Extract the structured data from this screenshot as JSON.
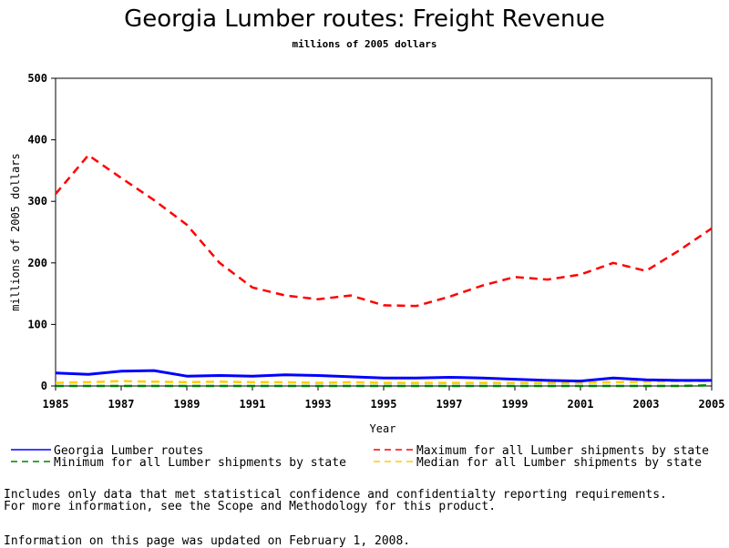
{
  "chart_data": {
    "type": "line",
    "title": "Georgia Lumber routes: Freight Revenue",
    "subtitle": "millions of 2005 dollars",
    "xlabel": "Year",
    "ylabel": "millions of 2005 dollars",
    "xlim": [
      1985,
      2005
    ],
    "ylim": [
      0,
      500
    ],
    "x_ticks": [
      "1985",
      "1987",
      "1989",
      "1991",
      "1993",
      "1995",
      "1997",
      "1999",
      "2001",
      "2003",
      "2005"
    ],
    "y_ticks": [
      "0",
      "100",
      "200",
      "300",
      "400",
      "500"
    ],
    "x": [
      1985,
      1986,
      1987,
      1988,
      1989,
      1990,
      1991,
      1992,
      1993,
      1994,
      1995,
      1996,
      1997,
      1998,
      1999,
      2000,
      2001,
      2002,
      2003,
      2004,
      2005
    ],
    "series": [
      {
        "name": "Georgia Lumber routes",
        "color": "#0000ff",
        "dash": "solid",
        "values": [
          21,
          19,
          24,
          25,
          16,
          17,
          16,
          18,
          17,
          15,
          13,
          13,
          14,
          13,
          11,
          9,
          8,
          13,
          10,
          9,
          9
        ]
      },
      {
        "name": "Maximum for all Lumber shipments by state",
        "color": "#ff0000",
        "dash": "dashed",
        "values": [
          312,
          375,
          338,
          302,
          262,
          200,
          160,
          147,
          141,
          147,
          131,
          130,
          145,
          163,
          177,
          173,
          181,
          200,
          187,
          220,
          256
        ]
      },
      {
        "name": "Minimum for all Lumber shipments by state",
        "color": "#008000",
        "dash": "dashed",
        "values": [
          0,
          0,
          0,
          0,
          0,
          0,
          0,
          0,
          0,
          0,
          0,
          0,
          0,
          0,
          0,
          0,
          0,
          0,
          0,
          0,
          1
        ]
      },
      {
        "name": "Median for all Lumber shipments by state",
        "color": "#ffcc00",
        "dash": "dashed",
        "values": [
          5,
          6,
          8,
          7,
          6,
          7,
          6,
          6,
          5,
          6,
          5,
          5,
          5,
          5,
          5,
          5,
          5,
          6,
          7,
          8,
          8
        ]
      }
    ],
    "grid": false,
    "legend_position": "bottom"
  },
  "notes": [
    "Includes only data that met statistical confidence and confidentialty reporting requirements.",
    "For more information, see the Scope and Methodology for this product.",
    "Information on this page was updated on February 1, 2008."
  ]
}
